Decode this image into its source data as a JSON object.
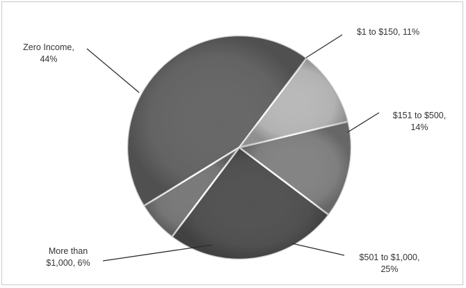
{
  "chart_data": {
    "type": "pie",
    "title": "",
    "legend": "none",
    "start_angle_deg": 37,
    "direction": "clockwise",
    "slices": [
      {
        "label": "$1 to $150",
        "value": 11,
        "value_text": "11%",
        "color": "#b9b9b9",
        "label_lines": [
          "$1 to $150, 11%"
        ]
      },
      {
        "label": "$151 to $500",
        "value": 14,
        "value_text": "14%",
        "color": "#848484",
        "label_lines": [
          "$151 to $500,",
          "14%"
        ]
      },
      {
        "label": "$501 to $1,000",
        "value": 25,
        "value_text": "25%",
        "color": "#535353",
        "label_lines": [
          "$501 to $1,000,",
          "25%"
        ]
      },
      {
        "label": "More than $1,000",
        "value": 6,
        "value_text": "6%",
        "color": "#7a7a7a",
        "label_lines": [
          "More than",
          "$1,000, 6%"
        ]
      },
      {
        "label": "Zero Income",
        "value": 44,
        "value_text": "44%",
        "color": "#676767",
        "label_lines": [
          "Zero Income,",
          "44%"
        ]
      }
    ]
  }
}
